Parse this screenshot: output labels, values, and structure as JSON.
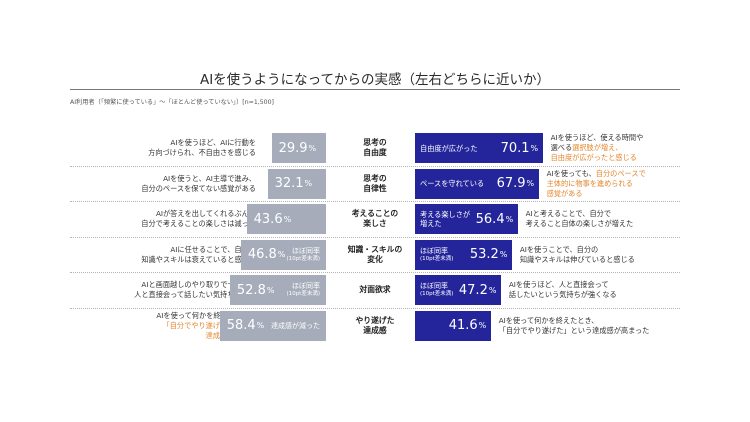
{
  "title": "AIを使うようになってからの実感（左右どちらに近いか）",
  "subtitle": "AI利用者（「頻繁に使っている」～「ほとんど使っていない」）[n=1,500]",
  "colors": {
    "left_bar": "#a6acb9",
    "right_bar": "#24259a",
    "highlight": "#e3862c"
  },
  "chart_data": {
    "type": "bar",
    "title": "AIを使うようになってからの実感（左右どちらに近いか）",
    "subtitle": "AI利用者（「頻繁に使っている」～「ほとんど使っていない」）[n=1,500]",
    "unit": "%",
    "categories": [
      "思考の自由度",
      "思考の自律性",
      "考えることの楽しさ",
      "知識・スキルの変化",
      "対面欲求",
      "やり遂げた達成感"
    ],
    "rows": [
      {
        "category_lines": [
          "思考の",
          "自由度"
        ],
        "left": {
          "value": 29.9,
          "value_text": "29.9",
          "statement": [
            {
              "t": "AIを使うほど、AIに行動を"
            },
            {
              "br": true
            },
            {
              "t": "方向づけられ、不自由さを感じる"
            }
          ],
          "bar_label": null
        },
        "right": {
          "value": 70.1,
          "value_text": "70.1",
          "statement": [
            {
              "t": "AIを使うほど、使える時間や"
            },
            {
              "br": true
            },
            {
              "t": "選べる"
            },
            {
              "t": "選択肢が増え、",
              "hl": true
            },
            {
              "br": true
            },
            {
              "t": "自由度が広がったと感じる",
              "hl": true
            }
          ],
          "bar_label_lines": [
            "自由度が広がった"
          ],
          "bar_note": null
        }
      },
      {
        "category_lines": [
          "思考の",
          "自律性"
        ],
        "left": {
          "value": 32.1,
          "value_text": "32.1",
          "statement": [
            {
              "t": "AIを使うと、AI主導で進み、"
            },
            {
              "br": true
            },
            {
              "t": "自分のペースを保てない感覚がある"
            }
          ],
          "bar_label": null
        },
        "right": {
          "value": 67.9,
          "value_text": "67.9",
          "statement": [
            {
              "t": "AIを使っても、"
            },
            {
              "t": "自分のペースで",
              "hl": true
            },
            {
              "br": true
            },
            {
              "t": "主体的に物事を進められる",
              "hl": true
            },
            {
              "br": true
            },
            {
              "t": "感覚がある",
              "hl": true
            }
          ],
          "bar_label_lines": [
            "ペースを守れている"
          ],
          "bar_note": null
        }
      },
      {
        "category_lines": [
          "考えることの",
          "楽しさ"
        ],
        "left": {
          "value": 43.6,
          "value_text": "43.6",
          "statement": [
            {
              "t": "AIが答えを出してくれるぶん、"
            },
            {
              "br": true
            },
            {
              "t": "自分で考えることの楽しさは減った"
            }
          ],
          "bar_label": null
        },
        "right": {
          "value": 56.4,
          "value_text": "56.4",
          "statement": [
            {
              "t": "AIと考えることで、自分で"
            },
            {
              "br": true
            },
            {
              "t": "考えること自体の楽しさが増えた"
            }
          ],
          "bar_label_lines": [
            "考える楽しさが",
            "増えた"
          ],
          "bar_note": null
        }
      },
      {
        "category_lines": [
          "知識・スキルの",
          "変化"
        ],
        "left": {
          "value": 46.8,
          "value_text": "46.8",
          "statement": [
            {
              "t": "AIに任せることで、自分の"
            },
            {
              "br": true
            },
            {
              "t": "知識やスキルは衰えていると感じる"
            }
          ],
          "bar_label": {
            "main": "ほぼ同率",
            "small": "(10pt差未満)"
          }
        },
        "right": {
          "value": 53.2,
          "value_text": "53.2",
          "statement": [
            {
              "t": "AIを使うことで、自分の"
            },
            {
              "br": true
            },
            {
              "t": "知識やスキルは伸びていると感じる"
            }
          ],
          "bar_label_lines": null,
          "bar_note": {
            "main": "ほぼ同率",
            "small": "(10pt差未満)"
          }
        }
      },
      {
        "category_lines": [
          "対面欲求"
        ],
        "left": {
          "value": 52.8,
          "value_text": "52.8",
          "statement": [
            {
              "t": "AIと画面越しのやり取りで十分で、"
            },
            {
              "br": true
            },
            {
              "t": "人と直接会って話したい気持ちは薄い"
            }
          ],
          "bar_label": {
            "main": "ほぼ同率",
            "small": "(10pt差未満)"
          }
        },
        "right": {
          "value": 47.2,
          "value_text": "47.2",
          "statement": [
            {
              "t": "AIを使うほど、人と直接会って"
            },
            {
              "br": true
            },
            {
              "t": "話したいという気持ちが強くなる"
            }
          ],
          "bar_label_lines": null,
          "bar_note": {
            "main": "ほぼ同率",
            "small": "(10pt差未満)"
          }
        }
      },
      {
        "category_lines": [
          "やり遂げた",
          "達成感"
        ],
        "left": {
          "value": 58.4,
          "value_text": "58.4",
          "statement": [
            {
              "t": "AIを使って何かを終えたとき、"
            },
            {
              "br": true
            },
            {
              "t": "「自分でやり遂げた」という",
              "hl": true
            },
            {
              "br": true
            },
            {
              "t": "達成感が減った",
              "hl": true
            }
          ],
          "bar_label": {
            "main": "達成感が減った",
            "small": null
          }
        },
        "right": {
          "value": 41.6,
          "value_text": "41.6",
          "statement": [
            {
              "t": "AIを使って何かを終えたとき、"
            },
            {
              "br": true
            },
            {
              "t": "「自分でやり遂げた」という達成感が高まった"
            }
          ],
          "bar_label_lines": null,
          "bar_note": null
        }
      }
    ]
  }
}
